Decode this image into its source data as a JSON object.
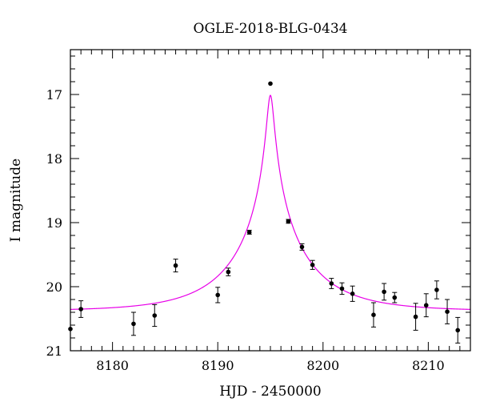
{
  "chart_data": {
    "type": "scatter",
    "title": "OGLE-2018-BLG-0434",
    "xlabel": "HJD - 2450000",
    "ylabel": "I magnitude",
    "xlim": [
      8176,
      8214
    ],
    "ylim": [
      21.0,
      16.3
    ],
    "y_inverted": true,
    "x_ticks": [
      8180,
      8190,
      8200,
      8210
    ],
    "y_ticks": [
      17,
      18,
      19,
      20,
      21
    ],
    "x_tick_labels": [
      "8180",
      "8190",
      "8200",
      "8210"
    ],
    "y_tick_labels": [
      "17",
      "18",
      "19",
      "20",
      "21"
    ],
    "grid": false,
    "colors": {
      "model": "#e800e8",
      "points": "#000000",
      "axes": "#000000"
    },
    "series": [
      {
        "type": "scatter",
        "points": [
          {
            "x": 8176.0,
            "y": 20.66,
            "err": 0.0
          },
          {
            "x": 8177.0,
            "y": 20.35,
            "err": 0.13
          },
          {
            "x": 8182.0,
            "y": 20.58,
            "err": 0.18
          },
          {
            "x": 8184.0,
            "y": 20.45,
            "err": 0.17
          },
          {
            "x": 8186.0,
            "y": 19.67,
            "err": 0.1
          },
          {
            "x": 8190.0,
            "y": 20.13,
            "err": 0.12
          },
          {
            "x": 8191.0,
            "y": 19.77,
            "err": 0.06
          },
          {
            "x": 8193.0,
            "y": 19.15,
            "err": 0.03
          },
          {
            "x": 8195.0,
            "y": 16.83,
            "err": 0.0
          },
          {
            "x": 8196.7,
            "y": 18.98,
            "err": 0.03
          },
          {
            "x": 8198.0,
            "y": 19.38,
            "err": 0.05
          },
          {
            "x": 8199.0,
            "y": 19.66,
            "err": 0.07
          },
          {
            "x": 8200.8,
            "y": 19.95,
            "err": 0.08
          },
          {
            "x": 8201.8,
            "y": 20.03,
            "err": 0.09
          },
          {
            "x": 8202.8,
            "y": 20.11,
            "err": 0.12
          },
          {
            "x": 8204.8,
            "y": 20.44,
            "err": 0.19
          },
          {
            "x": 8205.8,
            "y": 20.08,
            "err": 0.13
          },
          {
            "x": 8206.8,
            "y": 20.17,
            "err": 0.08
          },
          {
            "x": 8208.8,
            "y": 20.47,
            "err": 0.21
          },
          {
            "x": 8209.8,
            "y": 20.29,
            "err": 0.18
          },
          {
            "x": 8210.8,
            "y": 20.05,
            "err": 0.14
          },
          {
            "x": 8211.8,
            "y": 20.39,
            "err": 0.19
          },
          {
            "x": 8212.8,
            "y": 20.68,
            "err": 0.2
          }
        ]
      },
      {
        "type": "line",
        "model": "point-lens",
        "params": {
          "t0": 8195.0,
          "u0": 0.045,
          "tE": 7.0,
          "baseline": 20.38
        }
      }
    ]
  }
}
